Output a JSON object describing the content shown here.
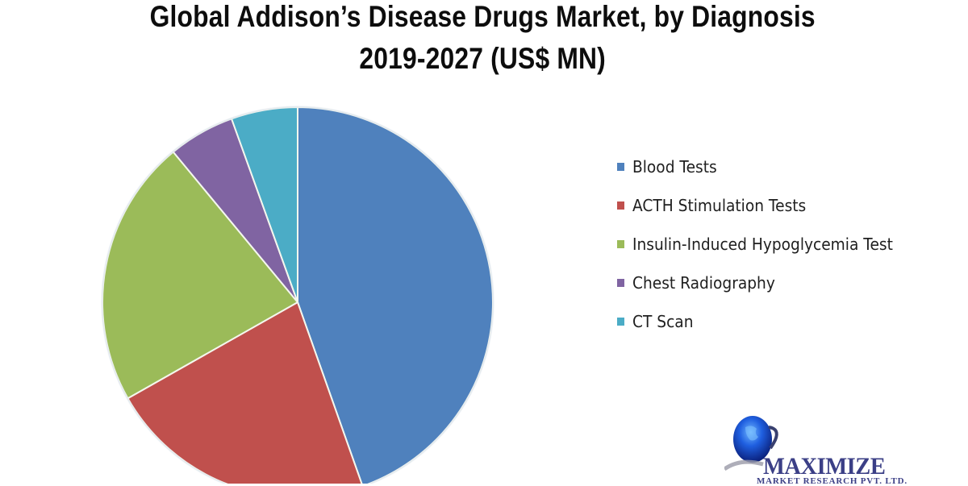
{
  "title": {
    "line1": "Global Addison’s Disease Drugs Market, by Diagnosis",
    "line2": "2019-2027 (US$ MN)"
  },
  "legend": {
    "items": [
      {
        "label": "Blood Tests",
        "color": "#4f81bd"
      },
      {
        "label": "ACTH Stimulation Tests",
        "color": "#c0504d"
      },
      {
        "label": "Insulin-Induced Hypoglycemia Test",
        "color": "#9bbb59"
      },
      {
        "label": "Chest Radiography",
        "color": "#8064a2"
      },
      {
        "label": "CT Scan",
        "color": "#4bacc6"
      }
    ]
  },
  "logo": {
    "name": "MAXIMIZE",
    "subtitle": "MARKET RESEARCH PVT. LTD."
  },
  "chart_data": {
    "type": "pie",
    "title": "Global Addison’s Disease Drugs Market, by Diagnosis 2019-2027 (US$ MN)",
    "categories": [
      "Blood Tests",
      "ACTH Stimulation Tests",
      "Insulin-Induced Hypoglycemia Test",
      "Chest Radiography",
      "CT Scan"
    ],
    "values": [
      44.6,
      22.2,
      22.2,
      5.5,
      5.5
    ],
    "unit": "% share (estimated from slice angles)",
    "colors": [
      "#4f81bd",
      "#c0504d",
      "#9bbb59",
      "#8064a2",
      "#4bacc6"
    ],
    "start_angle": "12 o'clock, clockwise",
    "legend_position": "right",
    "data_labels": false
  }
}
